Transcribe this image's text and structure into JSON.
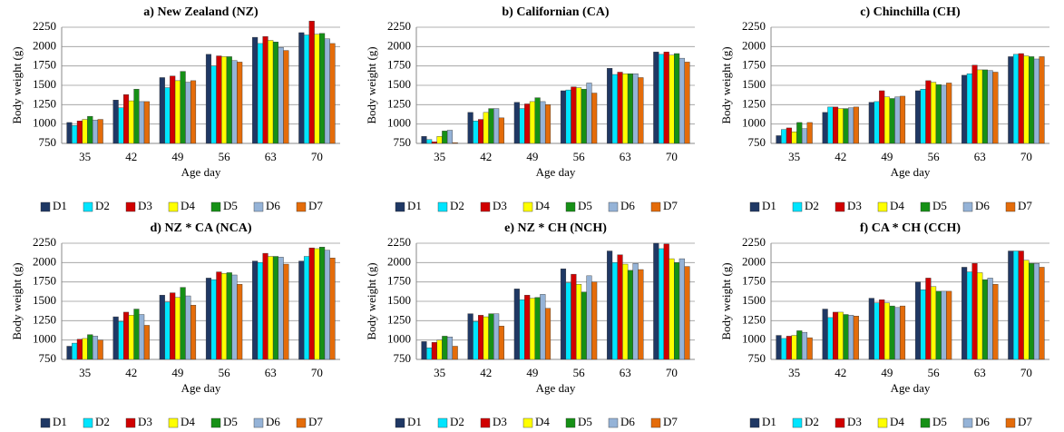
{
  "chart_data": [
    {
      "type": "bar",
      "title": "a) New Zealand (NZ)",
      "x_label": "Age day",
      "y_label": "Body weight (g)",
      "categories": [
        "35",
        "42",
        "49",
        "56",
        "63",
        "70"
      ],
      "ylim": [
        750,
        2250
      ],
      "yticks": [
        750,
        1000,
        1250,
        1500,
        1750,
        2000,
        2250
      ],
      "grid": true,
      "series": [
        {
          "name": "D1",
          "color": "#1f3864",
          "values": [
            1020,
            1310,
            1600,
            1900,
            2120,
            2180
          ]
        },
        {
          "name": "D2",
          "color": "#00e5ff",
          "values": [
            980,
            1210,
            1470,
            1750,
            2040,
            2150
          ]
        },
        {
          "name": "D3",
          "color": "#d00000",
          "values": [
            1040,
            1380,
            1620,
            1880,
            2130,
            2330
          ]
        },
        {
          "name": "D4",
          "color": "#ffff00",
          "values": [
            1060,
            1300,
            1560,
            1870,
            2080,
            2160
          ]
        },
        {
          "name": "D5",
          "color": "#169016",
          "values": [
            1100,
            1450,
            1680,
            1870,
            2060,
            2170
          ]
        },
        {
          "name": "D6",
          "color": "#95b3d7",
          "values": [
            1050,
            1290,
            1540,
            1820,
            1990,
            2100
          ]
        },
        {
          "name": "D7",
          "color": "#e46c0a",
          "values": [
            1060,
            1290,
            1560,
            1800,
            1950,
            2040
          ]
        }
      ]
    },
    {
      "type": "bar",
      "title": "b) Californian (CA)",
      "x_label": "Age day",
      "y_label": "Body weight (g)",
      "categories": [
        "35",
        "42",
        "49",
        "56",
        "63",
        "70"
      ],
      "ylim": [
        750,
        2250
      ],
      "yticks": [
        750,
        1000,
        1250,
        1500,
        1750,
        2000,
        2250
      ],
      "grid": true,
      "series": [
        {
          "name": "D1",
          "color": "#1f3864",
          "values": [
            840,
            1150,
            1280,
            1430,
            1720,
            1930
          ]
        },
        {
          "name": "D2",
          "color": "#00e5ff",
          "values": [
            800,
            1040,
            1200,
            1440,
            1640,
            1900
          ]
        },
        {
          "name": "D3",
          "color": "#d00000",
          "values": [
            770,
            1060,
            1260,
            1480,
            1670,
            1930
          ]
        },
        {
          "name": "D4",
          "color": "#ffff00",
          "values": [
            840,
            1150,
            1290,
            1470,
            1650,
            1890
          ]
        },
        {
          "name": "D5",
          "color": "#169016",
          "values": [
            910,
            1200,
            1340,
            1450,
            1650,
            1910
          ]
        },
        {
          "name": "D6",
          "color": "#95b3d7",
          "values": [
            920,
            1200,
            1290,
            1530,
            1650,
            1850
          ]
        },
        {
          "name": "D7",
          "color": "#e46c0a",
          "values": [
            760,
            1080,
            1250,
            1400,
            1600,
            1800
          ]
        }
      ]
    },
    {
      "type": "bar",
      "title": "c) Chinchilla (CH)",
      "x_label": "Age day",
      "y_label": "Body weight (g)",
      "categories": [
        "35",
        "42",
        "49",
        "56",
        "63",
        "70"
      ],
      "ylim": [
        750,
        2250
      ],
      "yticks": [
        750,
        1000,
        1250,
        1500,
        1750,
        2000,
        2250
      ],
      "grid": true,
      "series": [
        {
          "name": "D1",
          "color": "#1f3864",
          "values": [
            850,
            1150,
            1280,
            1430,
            1630,
            1870
          ]
        },
        {
          "name": "D2",
          "color": "#00e5ff",
          "values": [
            930,
            1220,
            1290,
            1450,
            1650,
            1900
          ]
        },
        {
          "name": "D3",
          "color": "#d00000",
          "values": [
            950,
            1220,
            1430,
            1560,
            1760,
            1910
          ]
        },
        {
          "name": "D4",
          "color": "#ffff00",
          "values": [
            900,
            1200,
            1350,
            1540,
            1700,
            1880
          ]
        },
        {
          "name": "D5",
          "color": "#169016",
          "values": [
            1020,
            1200,
            1330,
            1510,
            1700,
            1870
          ]
        },
        {
          "name": "D6",
          "color": "#95b3d7",
          "values": [
            940,
            1210,
            1350,
            1500,
            1690,
            1840
          ]
        },
        {
          "name": "D7",
          "color": "#e46c0a",
          "values": [
            1020,
            1220,
            1360,
            1530,
            1670,
            1870
          ]
        }
      ]
    },
    {
      "type": "bar",
      "title": "d) NZ * CA (NCA)",
      "x_label": "Age day",
      "y_label": "Body weight (g)",
      "categories": [
        "35",
        "42",
        "49",
        "56",
        "63",
        "70"
      ],
      "ylim": [
        750,
        2250
      ],
      "yticks": [
        750,
        1000,
        1250,
        1500,
        1750,
        2000,
        2250
      ],
      "grid": true,
      "series": [
        {
          "name": "D1",
          "color": "#1f3864",
          "values": [
            920,
            1300,
            1580,
            1800,
            2020,
            2020
          ]
        },
        {
          "name": "D2",
          "color": "#00e5ff",
          "values": [
            960,
            1240,
            1490,
            1780,
            2000,
            2080
          ]
        },
        {
          "name": "D3",
          "color": "#d00000",
          "values": [
            1010,
            1360,
            1610,
            1880,
            2120,
            2190
          ]
        },
        {
          "name": "D4",
          "color": "#ffff00",
          "values": [
            1020,
            1320,
            1550,
            1860,
            2080,
            2180
          ]
        },
        {
          "name": "D5",
          "color": "#169016",
          "values": [
            1070,
            1400,
            1680,
            1870,
            2080,
            2200
          ]
        },
        {
          "name": "D6",
          "color": "#95b3d7",
          "values": [
            1050,
            1330,
            1570,
            1840,
            2070,
            2160
          ]
        },
        {
          "name": "D7",
          "color": "#e46c0a",
          "values": [
            1000,
            1190,
            1450,
            1720,
            1980,
            2060
          ]
        }
      ]
    },
    {
      "type": "bar",
      "title": "e) NZ * CH (NCH)",
      "x_label": "Age day",
      "y_label": "Body weight (g)",
      "categories": [
        "35",
        "42",
        "49",
        "56",
        "63",
        "70"
      ],
      "ylim": [
        750,
        2250
      ],
      "yticks": [
        750,
        1000,
        1250,
        1500,
        1750,
        2000,
        2250
      ],
      "grid": true,
      "series": [
        {
          "name": "D1",
          "color": "#1f3864",
          "values": [
            980,
            1340,
            1660,
            1920,
            2150,
            2250
          ]
        },
        {
          "name": "D2",
          "color": "#00e5ff",
          "values": [
            900,
            1240,
            1520,
            1740,
            2000,
            2180
          ]
        },
        {
          "name": "D3",
          "color": "#d00000",
          "values": [
            970,
            1320,
            1580,
            1850,
            2100,
            2240
          ]
        },
        {
          "name": "D4",
          "color": "#ffff00",
          "values": [
            1000,
            1300,
            1540,
            1720,
            1980,
            2050
          ]
        },
        {
          "name": "D5",
          "color": "#169016",
          "values": [
            1050,
            1340,
            1550,
            1620,
            1900,
            2000
          ]
        },
        {
          "name": "D6",
          "color": "#95b3d7",
          "values": [
            1040,
            1340,
            1590,
            1830,
            1990,
            2050
          ]
        },
        {
          "name": "D7",
          "color": "#e46c0a",
          "values": [
            920,
            1180,
            1410,
            1750,
            1910,
            1950
          ]
        }
      ]
    },
    {
      "type": "bar",
      "title": "f) CA * CH (CCH)",
      "x_label": "Age day",
      "y_label": "Body weight (g)",
      "categories": [
        "35",
        "42",
        "49",
        "56",
        "63",
        "70"
      ],
      "ylim": [
        750,
        2250
      ],
      "yticks": [
        750,
        1000,
        1250,
        1500,
        1750,
        2000,
        2250
      ],
      "grid": true,
      "series": [
        {
          "name": "D1",
          "color": "#1f3864",
          "values": [
            1060,
            1400,
            1540,
            1750,
            1940,
            2150
          ]
        },
        {
          "name": "D2",
          "color": "#00e5ff",
          "values": [
            1020,
            1290,
            1480,
            1650,
            1880,
            2150
          ]
        },
        {
          "name": "D3",
          "color": "#d00000",
          "values": [
            1050,
            1360,
            1520,
            1800,
            1990,
            2150
          ]
        },
        {
          "name": "D4",
          "color": "#ffff00",
          "values": [
            1060,
            1360,
            1480,
            1690,
            1870,
            2030
          ]
        },
        {
          "name": "D5",
          "color": "#169016",
          "values": [
            1120,
            1330,
            1440,
            1630,
            1780,
            1990
          ]
        },
        {
          "name": "D6",
          "color": "#95b3d7",
          "values": [
            1100,
            1320,
            1420,
            1630,
            1800,
            1990
          ]
        },
        {
          "name": "D7",
          "color": "#e46c0a",
          "values": [
            1030,
            1310,
            1440,
            1630,
            1720,
            1940
          ]
        }
      ]
    }
  ]
}
